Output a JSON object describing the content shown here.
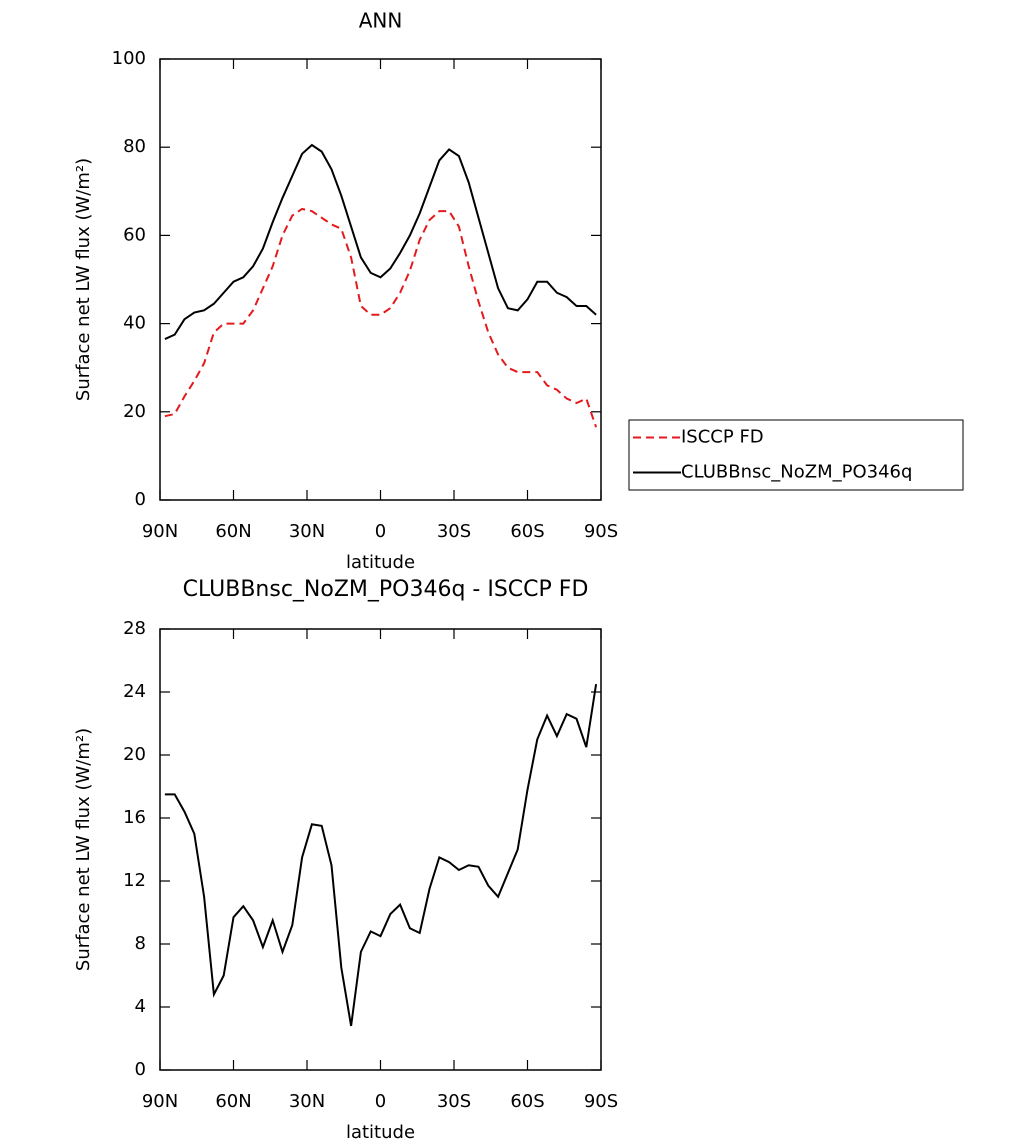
{
  "chart_data": [
    {
      "type": "line",
      "title": "ANN",
      "xlabel": "latitude",
      "ylabel": "Surface net LW flux (W/m²)",
      "x": [
        88,
        84,
        80,
        76,
        72,
        68,
        64,
        60,
        56,
        52,
        48,
        44,
        40,
        36,
        32,
        28,
        24,
        20,
        16,
        12,
        8,
        4,
        0,
        -4,
        -8,
        -12,
        -16,
        -20,
        -24,
        -28,
        -32,
        -36,
        -40,
        -44,
        -48,
        -52,
        -56,
        -60,
        -64,
        -68,
        -72,
        -76,
        -80,
        -84,
        -88
      ],
      "xlim": [
        90,
        -90
      ],
      "xticks": [
        {
          "value": 90,
          "label": "90N"
        },
        {
          "value": 60,
          "label": "60N"
        },
        {
          "value": 30,
          "label": "30N"
        },
        0,
        {
          "value": -30,
          "label": "30S"
        },
        {
          "value": -60,
          "label": "60S"
        },
        {
          "value": -90,
          "label": "90S"
        }
      ],
      "ylim": [
        0,
        100
      ],
      "yticks": [
        0,
        20,
        40,
        60,
        80,
        100
      ],
      "legend": "right",
      "series": [
        {
          "name": "ISCCP FD",
          "color": "#e41a1c",
          "dash": true,
          "values": [
            19,
            19.5,
            23.5,
            27,
            31,
            38,
            40,
            40,
            40,
            43,
            48,
            53,
            60,
            64.5,
            66,
            65.5,
            64,
            62.5,
            61.5,
            55,
            44,
            42,
            42,
            43.5,
            47,
            52,
            59,
            63.5,
            65.5,
            65.5,
            62,
            53,
            45,
            38,
            33,
            30,
            29,
            29,
            29,
            26,
            25,
            23,
            22,
            23,
            16.5
          ]
        },
        {
          "name": "CLUBBnsc_NoZM_PO346q",
          "color": "#000000",
          "dash": false,
          "values": [
            36.5,
            37.5,
            41,
            42.5,
            43,
            44.5,
            47,
            49.5,
            50.5,
            53,
            57,
            63,
            68.5,
            73.5,
            78.5,
            80.5,
            79,
            75,
            69,
            62,
            55,
            51.5,
            50.5,
            52.5,
            56,
            60,
            65,
            71,
            77,
            79.5,
            78,
            72,
            64,
            56,
            48,
            43.5,
            43,
            45.5,
            49.5,
            49.5,
            47,
            46,
            44,
            44,
            42
          ]
        }
      ]
    },
    {
      "type": "line",
      "title": "CLUBBnsc_NoZM_PO346q - ISCCP FD",
      "xlabel": "latitude",
      "ylabel": "Surface net LW flux (W/m²)",
      "x": [
        88,
        84,
        80,
        76,
        72,
        68,
        64,
        60,
        56,
        52,
        48,
        44,
        40,
        36,
        32,
        28,
        24,
        20,
        16,
        12,
        8,
        4,
        0,
        -4,
        -8,
        -12,
        -16,
        -20,
        -24,
        -28,
        -32,
        -36,
        -40,
        -44,
        -48,
        -52,
        -56,
        -60,
        -64,
        -68,
        -72,
        -76,
        -80,
        -84,
        -88
      ],
      "xlim": [
        90,
        -90
      ],
      "xticks": [
        {
          "value": 90,
          "label": "90N"
        },
        {
          "value": 60,
          "label": "60N"
        },
        {
          "value": 30,
          "label": "30N"
        },
        0,
        {
          "value": -30,
          "label": "30S"
        },
        {
          "value": -60,
          "label": "60S"
        },
        {
          "value": -90,
          "label": "90S"
        }
      ],
      "ylim": [
        0,
        28
      ],
      "yticks": [
        0,
        4,
        8,
        12,
        16,
        20,
        24,
        28
      ],
      "color": "#000000",
      "values": [
        17.5,
        17.5,
        16.4,
        15,
        11,
        4.8,
        6,
        9.7,
        10.4,
        9.5,
        7.8,
        9.5,
        7.5,
        9.2,
        13.5,
        15.6,
        15.5,
        13,
        6.5,
        2.8,
        7.5,
        8.8,
        8.5,
        9.9,
        10.5,
        9,
        8.7,
        11.5,
        13.5,
        13.2,
        12.7,
        13,
        12.9,
        11.7,
        11,
        12.5,
        14,
        17.8,
        21,
        22.5,
        21.2,
        22.6,
        22.3,
        20.5,
        24.5
      ]
    }
  ]
}
